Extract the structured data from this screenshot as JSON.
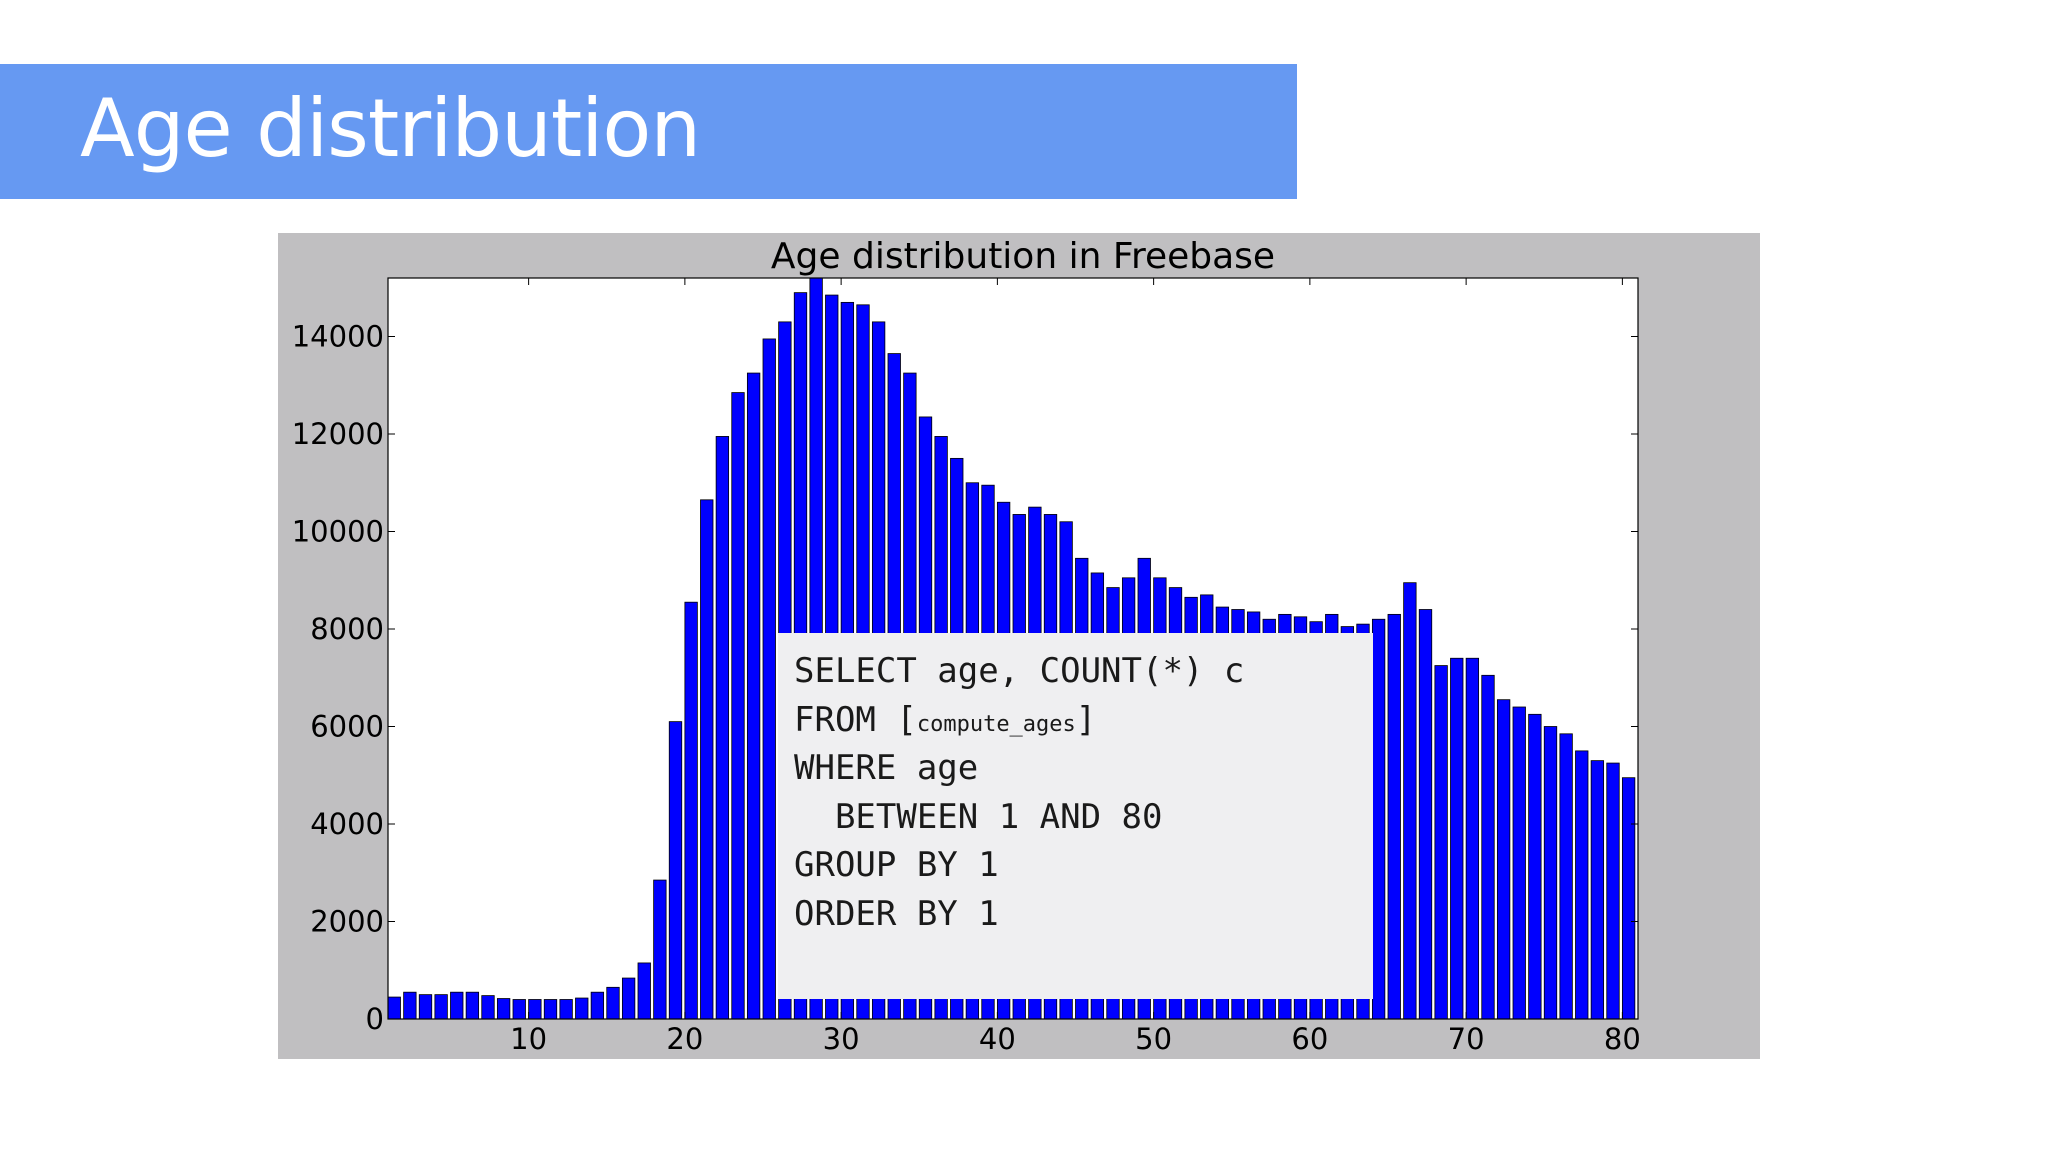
{
  "slide": {
    "title": "Age distribution"
  },
  "sql": {
    "lines": [
      {
        "parts": [
          {
            "text": "SELECT age, COUNT(*) c"
          }
        ]
      },
      {
        "parts": [
          {
            "text": "FROM "
          },
          {
            "text": "["
          },
          {
            "text": "compute_ages",
            "small": true
          },
          {
            "text": "]"
          }
        ]
      },
      {
        "parts": [
          {
            "text": "WHERE age"
          }
        ]
      },
      {
        "parts": [
          {
            "text": "  BETWEEN 1 AND 80"
          }
        ]
      },
      {
        "parts": [
          {
            "text": "GROUP BY 1"
          }
        ]
      },
      {
        "parts": [
          {
            "text": "ORDER BY 1"
          }
        ]
      }
    ]
  },
  "chart_data": {
    "type": "bar",
    "title": "Age distribution in Freebase",
    "xlabel": "",
    "ylabel": "",
    "xlim": [
      1,
      81
    ],
    "ylim": [
      0,
      15200
    ],
    "xticks": [
      10,
      20,
      30,
      40,
      50,
      60,
      70,
      80
    ],
    "yticks": [
      0,
      2000,
      4000,
      6000,
      8000,
      10000,
      12000,
      14000
    ],
    "grid": false,
    "bar_color": "#0000ff",
    "bar_edge_color": "#000000",
    "x": [
      1,
      2,
      3,
      4,
      5,
      6,
      7,
      8,
      9,
      10,
      11,
      12,
      13,
      14,
      15,
      16,
      17,
      18,
      19,
      20,
      21,
      22,
      23,
      24,
      25,
      26,
      27,
      28,
      29,
      30,
      31,
      32,
      33,
      34,
      35,
      36,
      37,
      38,
      39,
      40,
      41,
      42,
      43,
      44,
      45,
      46,
      47,
      48,
      49,
      50,
      51,
      52,
      53,
      54,
      55,
      56,
      57,
      58,
      59,
      60,
      61,
      62,
      63,
      64,
      65,
      66,
      67,
      68,
      69,
      70,
      71,
      72,
      73,
      74,
      75,
      76,
      77,
      78,
      79,
      80
    ],
    "values": [
      450,
      550,
      500,
      500,
      550,
      550,
      480,
      420,
      400,
      400,
      400,
      400,
      430,
      550,
      650,
      840,
      1150,
      2850,
      6100,
      8550,
      10650,
      11950,
      12850,
      13250,
      13950,
      14300,
      14900,
      15200,
      14850,
      14700,
      14650,
      14300,
      13650,
      13250,
      12350,
      11950,
      11500,
      11000,
      10950,
      10600,
      10350,
      10500,
      10350,
      10200,
      9450,
      9150,
      8850,
      9050,
      9450,
      9050,
      8850,
      8650,
      8700,
      8450,
      8400,
      8350,
      8200,
      8300,
      8250,
      8150,
      8300,
      8050,
      8100,
      8200,
      8300,
      8950,
      8400,
      7250,
      7400,
      7400,
      7050,
      6550,
      6400,
      6250,
      6000,
      5850,
      5500,
      5300,
      5250,
      4950
    ],
    "legend": "none"
  }
}
